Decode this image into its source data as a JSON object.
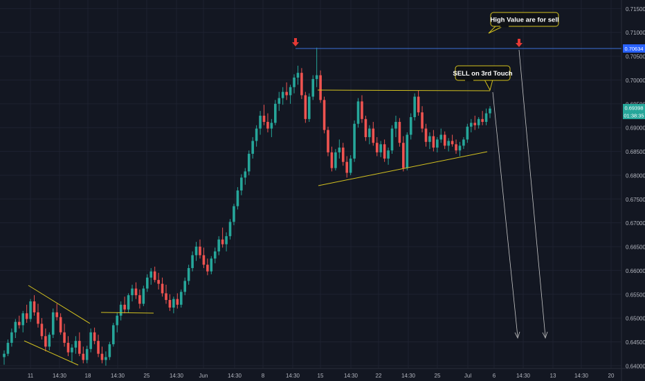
{
  "colors": {
    "background": "#131722",
    "grid": "#1e2230",
    "up": "#26a69a",
    "down": "#ef5350",
    "axis_text": "#b2b5be",
    "trendline": "#d4c21f",
    "hline": "#3c6fd6",
    "arrow_marker": "#e53935",
    "projection": "#c8c8c8",
    "callout_bg": "#0f1115",
    "callout_border": "#d4c21f",
    "callout_text": "#ffffff",
    "price_tag_blue": "#2962ff",
    "price_tag_green": "#26a69a"
  },
  "annotations": {
    "high_value": "High Value are for sell",
    "sell_third_touch": "SELL on 3rd Touch"
  },
  "price_tags": {
    "horizontal_level": "0.70634",
    "last_price": "0.69398",
    "countdown": "01:38:35"
  },
  "chart_data": {
    "type": "candlestick",
    "title": "",
    "xlabel": "",
    "ylabel": "",
    "ylim": [
      0.6394,
      0.7168
    ],
    "y_ticks": [
      "0.64000",
      "0.64500",
      "0.65000",
      "0.65500",
      "0.66000",
      "0.66500",
      "0.67000",
      "0.67500",
      "0.68000",
      "0.68500",
      "0.69000",
      "0.69500",
      "0.70000",
      "0.70500",
      "0.71000",
      "0.71500"
    ],
    "x_ticks": [
      "11",
      "14:30",
      "18",
      "14:30",
      "25",
      "14:30",
      "Jun",
      "14:30",
      "8",
      "14:30",
      "15",
      "14:30",
      "22",
      "14:30",
      "25",
      "Jul",
      "6",
      "14:30",
      "13",
      "14:30",
      "20"
    ],
    "grid": true,
    "series": [
      {
        "key": "price",
        "ohlc": [
          [
            0.6418,
            0.6432,
            0.6402,
            0.6425
          ],
          [
            0.6425,
            0.6455,
            0.642,
            0.6448
          ],
          [
            0.6448,
            0.6478,
            0.644,
            0.647
          ],
          [
            0.647,
            0.6498,
            0.6458,
            0.6492
          ],
          [
            0.6492,
            0.6505,
            0.6478,
            0.6485
          ],
          [
            0.6485,
            0.6515,
            0.647,
            0.651
          ],
          [
            0.651,
            0.6528,
            0.649,
            0.6498
          ],
          [
            0.6498,
            0.654,
            0.6492,
            0.6535
          ],
          [
            0.6535,
            0.6548,
            0.6505,
            0.6512
          ],
          [
            0.6512,
            0.653,
            0.648,
            0.6488
          ],
          [
            0.6488,
            0.65,
            0.6455,
            0.6462
          ],
          [
            0.6462,
            0.6478,
            0.643,
            0.644
          ],
          [
            0.644,
            0.647,
            0.6432,
            0.6465
          ],
          [
            0.6465,
            0.652,
            0.6458,
            0.6512
          ],
          [
            0.6512,
            0.653,
            0.6495,
            0.6502
          ],
          [
            0.6502,
            0.651,
            0.6465,
            0.647
          ],
          [
            0.647,
            0.6488,
            0.644,
            0.6448
          ],
          [
            0.6448,
            0.6462,
            0.642,
            0.6428
          ],
          [
            0.6428,
            0.6445,
            0.6408,
            0.6438
          ],
          [
            0.6438,
            0.6462,
            0.6425,
            0.6452
          ],
          [
            0.6452,
            0.647,
            0.642,
            0.6425
          ],
          [
            0.6425,
            0.644,
            0.6405,
            0.6412
          ],
          [
            0.6412,
            0.6442,
            0.6405,
            0.6435
          ],
          [
            0.6435,
            0.6478,
            0.6428,
            0.647
          ],
          [
            0.647,
            0.648,
            0.6445,
            0.6452
          ],
          [
            0.6452,
            0.6465,
            0.6418,
            0.6425
          ],
          [
            0.6425,
            0.644,
            0.6405,
            0.6412
          ],
          [
            0.6412,
            0.643,
            0.64,
            0.6418
          ],
          [
            0.6418,
            0.645,
            0.6412,
            0.6445
          ],
          [
            0.6445,
            0.649,
            0.644,
            0.6485
          ],
          [
            0.6485,
            0.6512,
            0.647,
            0.6505
          ],
          [
            0.6505,
            0.6535,
            0.6495,
            0.6528
          ],
          [
            0.6528,
            0.6545,
            0.651,
            0.6518
          ],
          [
            0.6518,
            0.6552,
            0.6512,
            0.6548
          ],
          [
            0.6548,
            0.657,
            0.6535,
            0.6562
          ],
          [
            0.6562,
            0.6575,
            0.654,
            0.6548
          ],
          [
            0.6548,
            0.656,
            0.652,
            0.653
          ],
          [
            0.653,
            0.6568,
            0.6525,
            0.6562
          ],
          [
            0.6562,
            0.6592,
            0.6555,
            0.6585
          ],
          [
            0.6585,
            0.6605,
            0.657,
            0.6598
          ],
          [
            0.6598,
            0.6608,
            0.6575,
            0.658
          ],
          [
            0.658,
            0.6595,
            0.656,
            0.6572
          ],
          [
            0.6572,
            0.6585,
            0.6545,
            0.6552
          ],
          [
            0.6552,
            0.657,
            0.653,
            0.6538
          ],
          [
            0.6538,
            0.655,
            0.6515,
            0.6522
          ],
          [
            0.6522,
            0.6545,
            0.651,
            0.654
          ],
          [
            0.654,
            0.6552,
            0.652,
            0.6528
          ],
          [
            0.6528,
            0.656,
            0.6522,
            0.6555
          ],
          [
            0.6555,
            0.6585,
            0.6548,
            0.6578
          ],
          [
            0.6578,
            0.6612,
            0.657,
            0.6605
          ],
          [
            0.6605,
            0.664,
            0.6598,
            0.6632
          ],
          [
            0.6632,
            0.666,
            0.662,
            0.665
          ],
          [
            0.665,
            0.6665,
            0.6625,
            0.6632
          ],
          [
            0.6632,
            0.6648,
            0.6605,
            0.6612
          ],
          [
            0.6612,
            0.6625,
            0.659,
            0.6598
          ],
          [
            0.6598,
            0.663,
            0.6592,
            0.6625
          ],
          [
            0.6625,
            0.6648,
            0.6615,
            0.664
          ],
          [
            0.664,
            0.6672,
            0.6632,
            0.6665
          ],
          [
            0.6665,
            0.669,
            0.6648,
            0.6655
          ],
          [
            0.6655,
            0.668,
            0.664,
            0.6672
          ],
          [
            0.6672,
            0.6708,
            0.6665,
            0.6702
          ],
          [
            0.6702,
            0.674,
            0.6695,
            0.6735
          ],
          [
            0.6735,
            0.6775,
            0.6728,
            0.6768
          ],
          [
            0.6768,
            0.6802,
            0.6758,
            0.6795
          ],
          [
            0.6795,
            0.6815,
            0.678,
            0.6808
          ],
          [
            0.6808,
            0.6852,
            0.68,
            0.6845
          ],
          [
            0.6845,
            0.688,
            0.6835,
            0.6872
          ],
          [
            0.6872,
            0.6905,
            0.686,
            0.6898
          ],
          [
            0.6898,
            0.6935,
            0.6885,
            0.6925
          ],
          [
            0.6925,
            0.6948,
            0.6905,
            0.6912
          ],
          [
            0.6912,
            0.693,
            0.689,
            0.6898
          ],
          [
            0.6898,
            0.6918,
            0.688,
            0.691
          ],
          [
            0.691,
            0.6958,
            0.6905,
            0.695
          ],
          [
            0.695,
            0.6975,
            0.6935,
            0.6962
          ],
          [
            0.6962,
            0.6985,
            0.6948,
            0.6975
          ],
          [
            0.6975,
            0.6995,
            0.6958,
            0.6968
          ],
          [
            0.6968,
            0.699,
            0.695,
            0.6985
          ],
          [
            0.6985,
            0.7012,
            0.6972,
            0.7005
          ],
          [
            0.7005,
            0.703,
            0.699,
            0.7015
          ],
          [
            0.7015,
            0.7025,
            0.696,
            0.6968
          ],
          [
            0.6968,
            0.6975,
            0.691,
            0.6918
          ],
          [
            0.6918,
            0.6972,
            0.6912,
            0.6965
          ],
          [
            0.6965,
            0.701,
            0.6958,
            0.7002
          ],
          [
            0.7002,
            0.7068,
            0.6985,
            0.701
          ],
          [
            0.701,
            0.702,
            0.6952,
            0.6958
          ],
          [
            0.6958,
            0.6965,
            0.6888,
            0.6895
          ],
          [
            0.6895,
            0.6902,
            0.684,
            0.6848
          ],
          [
            0.6848,
            0.686,
            0.6808,
            0.6815
          ],
          [
            0.6815,
            0.6855,
            0.681,
            0.6848
          ],
          [
            0.6848,
            0.6875,
            0.6835,
            0.6858
          ],
          [
            0.6858,
            0.6868,
            0.682,
            0.6828
          ],
          [
            0.6828,
            0.684,
            0.6795,
            0.6805
          ],
          [
            0.6805,
            0.6842,
            0.68,
            0.6835
          ],
          [
            0.6835,
            0.6915,
            0.6828,
            0.6908
          ],
          [
            0.6908,
            0.6962,
            0.69,
            0.6955
          ],
          [
            0.6955,
            0.6968,
            0.691,
            0.6918
          ],
          [
            0.6918,
            0.6925,
            0.6872,
            0.688
          ],
          [
            0.688,
            0.6905,
            0.6865,
            0.6898
          ],
          [
            0.6898,
            0.6912,
            0.6862,
            0.6868
          ],
          [
            0.6868,
            0.688,
            0.684,
            0.6848
          ],
          [
            0.6848,
            0.6872,
            0.6838,
            0.6865
          ],
          [
            0.6865,
            0.6875,
            0.6828,
            0.6835
          ],
          [
            0.6835,
            0.6858,
            0.6822,
            0.6852
          ],
          [
            0.6852,
            0.6905,
            0.6845,
            0.6898
          ],
          [
            0.6898,
            0.6925,
            0.688,
            0.6912
          ],
          [
            0.6912,
            0.692,
            0.686,
            0.6868
          ],
          [
            0.6868,
            0.6882,
            0.6808,
            0.6815
          ],
          [
            0.6815,
            0.689,
            0.681,
            0.6885
          ],
          [
            0.6885,
            0.693,
            0.6875,
            0.6922
          ],
          [
            0.6922,
            0.6972,
            0.6915,
            0.6965
          ],
          [
            0.6965,
            0.6978,
            0.6925,
            0.6932
          ],
          [
            0.6932,
            0.6945,
            0.689,
            0.6898
          ],
          [
            0.6898,
            0.6908,
            0.686,
            0.687
          ],
          [
            0.687,
            0.689,
            0.6855,
            0.6882
          ],
          [
            0.6882,
            0.6895,
            0.685,
            0.6858
          ],
          [
            0.6858,
            0.688,
            0.6848,
            0.6875
          ],
          [
            0.6875,
            0.6898,
            0.6868,
            0.6885
          ],
          [
            0.6885,
            0.6892,
            0.6855,
            0.6862
          ],
          [
            0.6862,
            0.6878,
            0.685,
            0.6872
          ],
          [
            0.6872,
            0.6885,
            0.686,
            0.6865
          ],
          [
            0.6865,
            0.6875,
            0.6845,
            0.6852
          ],
          [
            0.6852,
            0.687,
            0.684,
            0.6862
          ],
          [
            0.6862,
            0.688,
            0.6855,
            0.6875
          ],
          [
            0.6875,
            0.6908,
            0.6868,
            0.6902
          ],
          [
            0.6902,
            0.6918,
            0.689,
            0.691
          ],
          [
            0.691,
            0.6925,
            0.6895,
            0.6905
          ],
          [
            0.6905,
            0.6922,
            0.6898,
            0.6918
          ],
          [
            0.6918,
            0.6935,
            0.6905,
            0.6912
          ],
          [
            0.6912,
            0.694,
            0.6905,
            0.693
          ],
          [
            0.693,
            0.6945,
            0.692,
            0.694
          ]
        ]
      }
    ]
  }
}
